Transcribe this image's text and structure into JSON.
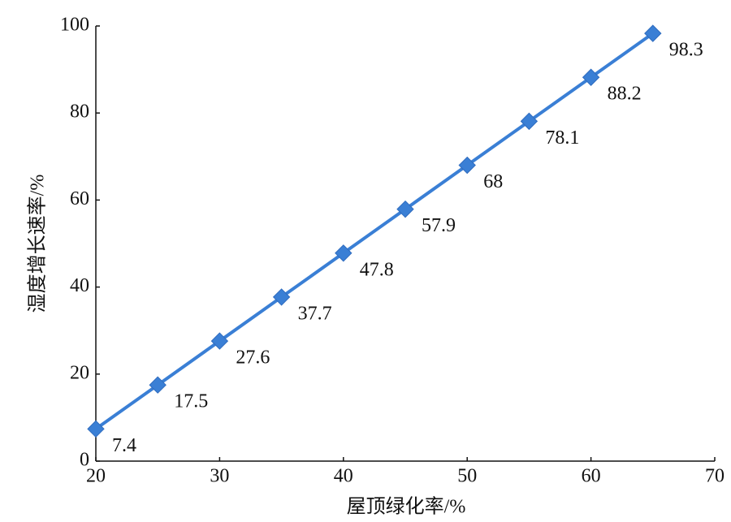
{
  "chart_data": {
    "type": "line",
    "x_label": "屋顶绿化率/%",
    "y_label": "湿度增长速率/%",
    "x": [
      20,
      25,
      30,
      35,
      40,
      45,
      50,
      55,
      60,
      65
    ],
    "series": [
      {
        "color": "#3a7fd5",
        "values": [
          7.4,
          17.5,
          27.6,
          37.7,
          47.8,
          57.9,
          68,
          78.1,
          88.2,
          98.3
        ]
      }
    ],
    "xlim": [
      20,
      70
    ],
    "xticks": [
      20,
      30,
      40,
      50,
      60,
      70
    ],
    "ylim": [
      0,
      100
    ],
    "yticks": [
      0,
      20,
      40,
      60,
      80,
      100
    ],
    "grid": false
  }
}
